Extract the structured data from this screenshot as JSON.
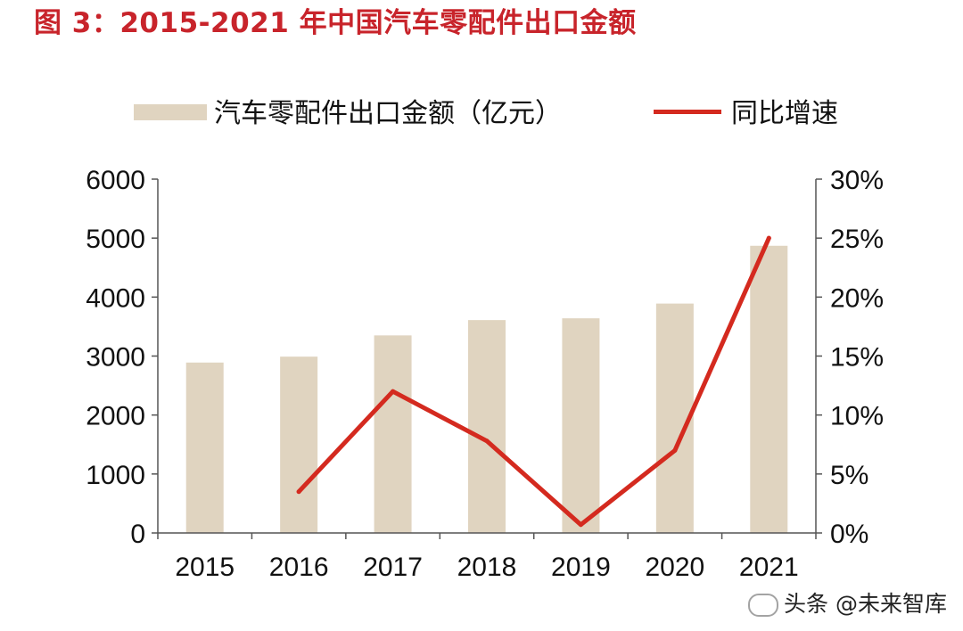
{
  "title": "图 3：2015-2021 年中国汽车零配件出口金额",
  "legend": {
    "bar_label": "汽车零配件出口金额（亿元）",
    "line_label": "同比增速"
  },
  "watermark": "头条 @未来智库",
  "colors": {
    "title": "#c8242b",
    "bar": "#e0d4c0",
    "line": "#d42a1f",
    "axis": "#555555"
  },
  "chart_data": {
    "type": "bar",
    "categories": [
      "2015",
      "2016",
      "2017",
      "2018",
      "2019",
      "2020",
      "2021"
    ],
    "series": [
      {
        "name": "汽车零配件出口金额（亿元）",
        "type": "bar",
        "axis": "left",
        "values": [
          2890,
          2990,
          3350,
          3610,
          3640,
          3890,
          4870
        ]
      },
      {
        "name": "同比增速",
        "type": "line",
        "axis": "right",
        "values": [
          null,
          3.5,
          12.0,
          7.8,
          0.7,
          7.0,
          25.0
        ]
      }
    ],
    "ylim": [
      0,
      6000
    ],
    "y_ticks": [
      "0",
      "1000",
      "2000",
      "3000",
      "4000",
      "5000",
      "6000"
    ],
    "y2lim": [
      0,
      30
    ],
    "y2_ticks": [
      "0%",
      "5%",
      "10%",
      "15%",
      "20%",
      "25%",
      "30%"
    ],
    "grid": false,
    "legend_position": "top"
  }
}
